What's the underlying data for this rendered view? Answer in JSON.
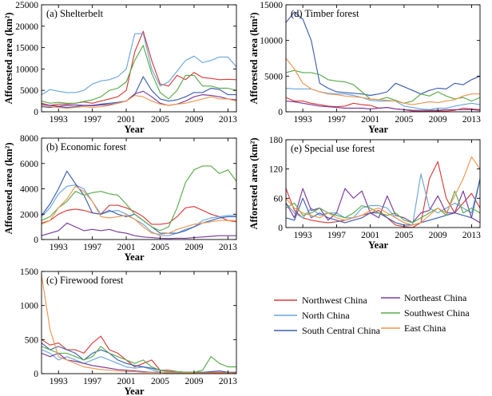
{
  "chart_data": [
    {
      "type": "line",
      "title": "(a) Shelterbelt",
      "xlabel": "Year",
      "ylabel": "Afforested area (km²)",
      "ylim": [
        0,
        25000
      ],
      "yticks": [
        0,
        5000,
        10000,
        15000,
        20000,
        25000
      ],
      "xlim": [
        1991,
        2014
      ],
      "xticks": [
        1993,
        1997,
        2001,
        2005,
        2009,
        2013
      ],
      "x": [
        1991,
        1992,
        1993,
        1994,
        1995,
        1996,
        1997,
        1998,
        1999,
        2000,
        2001,
        2002,
        2003,
        2004,
        2005,
        2006,
        2007,
        2008,
        2009,
        2010,
        2011,
        2012,
        2013,
        2014
      ],
      "series": [
        {
          "name": "Northwest China",
          "values": [
            2000,
            1500,
            1800,
            1800,
            2000,
            2300,
            2000,
            2500,
            3000,
            3500,
            5000,
            14000,
            18800,
            12000,
            6500,
            6000,
            8500,
            7500,
            9200,
            8000,
            7800,
            7500,
            7600,
            7500
          ]
        },
        {
          "name": "North China",
          "values": [
            4000,
            5200,
            4800,
            4500,
            4500,
            5000,
            6500,
            7200,
            7500,
            8200,
            10000,
            18200,
            18300,
            10000,
            6000,
            7000,
            9500,
            12000,
            13000,
            11500,
            12000,
            12800,
            12800,
            10500
          ]
        },
        {
          "name": "South Central China",
          "values": [
            1200,
            1000,
            1200,
            1000,
            1200,
            1500,
            1500,
            1800,
            2000,
            2200,
            2500,
            4000,
            8200,
            5000,
            3000,
            2500,
            2800,
            3500,
            4500,
            4500,
            5500,
            5200,
            4000,
            4000
          ]
        },
        {
          "name": "Northeast China",
          "values": [
            1800,
            1500,
            1300,
            1500,
            1600,
            1500,
            1400,
            1600,
            1700,
            2000,
            2500,
            4200,
            4800,
            3500,
            2000,
            1500,
            1800,
            2500,
            3500,
            4000,
            3800,
            3500,
            3000,
            2800
          ]
        },
        {
          "name": "Southwest China",
          "values": [
            2500,
            2000,
            2200,
            2000,
            2000,
            2400,
            2800,
            3500,
            5000,
            5500,
            7000,
            12000,
            15500,
            9000,
            4500,
            3000,
            5000,
            8500,
            8500,
            6000,
            6000,
            5500,
            5500,
            5000
          ]
        },
        {
          "name": "East China",
          "values": [
            1500,
            1200,
            1000,
            800,
            1000,
            1200,
            1000,
            1200,
            1500,
            2000,
            2500,
            3800,
            3500,
            2500,
            1800,
            1500,
            1800,
            2000,
            2500,
            3000,
            3500,
            3000,
            3000,
            2500
          ]
        }
      ]
    },
    {
      "type": "line",
      "title": "(b) Economic forest",
      "xlabel": "Year",
      "ylabel": "Afforested area (km²)",
      "ylim": [
        0,
        8000
      ],
      "yticks": [
        0,
        2000,
        4000,
        6000,
        8000
      ],
      "xlim": [
        1991,
        2014
      ],
      "xticks": [
        1993,
        1997,
        2001,
        2005,
        2009,
        2013
      ],
      "x": [
        1991,
        1992,
        1993,
        1994,
        1995,
        1996,
        1997,
        1998,
        1999,
        2000,
        2001,
        2002,
        2003,
        2004,
        2005,
        2006,
        2007,
        2008,
        2009,
        2010,
        2011,
        2012,
        2013,
        2014
      ],
      "series": [
        {
          "name": "Northwest China",
          "values": [
            1300,
            1500,
            2000,
            2300,
            2400,
            2300,
            2100,
            2000,
            2700,
            2700,
            2500,
            2200,
            1800,
            1200,
            1200,
            1300,
            1800,
            2500,
            2600,
            2300,
            2000,
            1800,
            1500,
            1400
          ]
        },
        {
          "name": "North China",
          "values": [
            1800,
            2500,
            3600,
            4200,
            4300,
            4000,
            3000,
            2000,
            2200,
            2300,
            2000,
            1600,
            1200,
            600,
            300,
            300,
            500,
            800,
            1000,
            1500,
            1700,
            1800,
            1900,
            1900
          ]
        },
        {
          "name": "South Central China",
          "values": [
            1900,
            2800,
            4000,
            5400,
            4400,
            3500,
            2100,
            2000,
            2300,
            2000,
            1800,
            2000,
            1500,
            1000,
            500,
            500,
            500,
            700,
            1000,
            1300,
            1500,
            1700,
            1800,
            1800
          ]
        },
        {
          "name": "Northeast China",
          "values": [
            300,
            500,
            700,
            1300,
            1000,
            700,
            800,
            700,
            800,
            600,
            500,
            300,
            200,
            150,
            100,
            80,
            100,
            100,
            150,
            200,
            250,
            300,
            300,
            300
          ]
        },
        {
          "name": "Southwest China",
          "values": [
            1500,
            1800,
            2500,
            3000,
            3800,
            3500,
            3700,
            3800,
            3600,
            3500,
            2800,
            2000,
            1500,
            1000,
            700,
            1000,
            2500,
            4500,
            5500,
            5800,
            5800,
            5200,
            5500,
            4600
          ]
        },
        {
          "name": "East China",
          "values": [
            1200,
            1500,
            2500,
            3200,
            4200,
            3800,
            3000,
            1800,
            1700,
            1800,
            1900,
            1600,
            1000,
            500,
            400,
            500,
            800,
            1000,
            1200,
            1300,
            1400,
            1500,
            1500,
            1500
          ]
        }
      ]
    },
    {
      "type": "line",
      "title": "(c) Firewood forest",
      "xlabel": "Year",
      "ylabel": "",
      "ylim": [
        0,
        1500
      ],
      "yticks": [
        0,
        500,
        1000,
        1500
      ],
      "xlim": [
        1991,
        2014
      ],
      "xticks": [
        1993,
        1997,
        2001,
        2005,
        2009,
        2013
      ],
      "x": [
        1991,
        1992,
        1993,
        1994,
        1995,
        1996,
        1997,
        1998,
        1999,
        2000,
        2001,
        2002,
        2003,
        2004,
        2005,
        2006,
        2007,
        2008,
        2009,
        2010,
        2011,
        2012,
        2013,
        2014
      ],
      "series": [
        {
          "name": "Northwest China",
          "values": [
            500,
            420,
            450,
            350,
            350,
            300,
            450,
            550,
            350,
            300,
            200,
            100,
            150,
            200,
            50,
            50,
            30,
            20,
            20,
            20,
            20,
            20,
            20,
            20
          ]
        },
        {
          "name": "North China",
          "values": [
            350,
            300,
            200,
            250,
            200,
            150,
            200,
            250,
            200,
            150,
            100,
            80,
            100,
            60,
            20,
            20,
            20,
            20,
            20,
            10,
            10,
            10,
            10,
            10
          ]
        },
        {
          "name": "South Central China",
          "values": [
            450,
            350,
            400,
            350,
            300,
            200,
            300,
            350,
            300,
            200,
            150,
            120,
            100,
            80,
            50,
            30,
            30,
            20,
            20,
            20,
            30,
            40,
            20,
            20
          ]
        },
        {
          "name": "Northeast China",
          "values": [
            300,
            250,
            300,
            200,
            180,
            150,
            120,
            100,
            80,
            60,
            50,
            40,
            30,
            20,
            20,
            10,
            10,
            10,
            10,
            10,
            10,
            10,
            10,
            10
          ]
        },
        {
          "name": "Southwest China",
          "values": [
            400,
            350,
            300,
            300,
            250,
            200,
            250,
            400,
            300,
            250,
            200,
            150,
            200,
            100,
            50,
            30,
            30,
            20,
            20,
            50,
            250,
            150,
            100,
            100
          ]
        },
        {
          "name": "East China",
          "values": [
            1450,
            650,
            250,
            200,
            150,
            100,
            80,
            60,
            50,
            40,
            30,
            30,
            20,
            20,
            20,
            10,
            10,
            10,
            10,
            10,
            10,
            10,
            10,
            10
          ]
        }
      ]
    },
    {
      "type": "line",
      "title": "(d) Timber forest",
      "xlabel": "Year",
      "ylabel": "Afforested area (km²)",
      "ylim": [
        0,
        15000
      ],
      "yticks": [
        0,
        5000,
        10000,
        15000
      ],
      "xlim": [
        1991,
        2014
      ],
      "xticks": [
        1993,
        1997,
        2001,
        2005,
        2009,
        2013
      ],
      "x": [
        1991,
        1992,
        1993,
        1994,
        1995,
        1996,
        1997,
        1998,
        1999,
        2000,
        2001,
        2002,
        2003,
        2004,
        2005,
        2006,
        2007,
        2008,
        2009,
        2010,
        2011,
        2012,
        2013,
        2014
      ],
      "series": [
        {
          "name": "Northwest China",
          "values": [
            2000,
            1500,
            1500,
            1200,
            1000,
            800,
            700,
            800,
            1200,
            1000,
            900,
            500,
            600,
            400,
            300,
            100,
            50,
            80,
            100,
            100,
            200,
            500,
            400,
            300
          ]
        },
        {
          "name": "North China",
          "values": [
            3300,
            3200,
            3200,
            3200,
            2800,
            2600,
            2500,
            2500,
            2300,
            2000,
            1600,
            1500,
            1500,
            1500,
            800,
            600,
            400,
            300,
            500,
            500,
            800,
            1000,
            1200,
            1000
          ]
        },
        {
          "name": "South Central China",
          "values": [
            12500,
            14000,
            13000,
            10000,
            4000,
            3300,
            2800,
            2700,
            2600,
            2500,
            2300,
            2500,
            2800,
            4000,
            3500,
            3000,
            2500,
            3000,
            3300,
            3200,
            4000,
            3800,
            4500,
            5000
          ]
        },
        {
          "name": "Northeast China",
          "values": [
            1500,
            1400,
            1200,
            1000,
            800,
            700,
            600,
            500,
            500,
            500,
            400,
            500,
            600,
            400,
            300,
            200,
            200,
            200,
            200,
            300,
            300,
            300,
            300,
            200
          ]
        },
        {
          "name": "Southwest China",
          "values": [
            5500,
            5800,
            5500,
            5500,
            5200,
            4500,
            4300,
            4200,
            3800,
            2800,
            1800,
            1700,
            2000,
            1600,
            1200,
            1500,
            2500,
            2200,
            2800,
            2200,
            1800,
            2000,
            1500,
            2000
          ]
        },
        {
          "name": "East China",
          "values": [
            7500,
            6000,
            4000,
            3200,
            2800,
            2500,
            2400,
            2200,
            2100,
            2000,
            1800,
            1700,
            1600,
            1500,
            1200,
            1000,
            1200,
            1400,
            1300,
            1500,
            1700,
            2200,
            2500,
            2500
          ]
        }
      ]
    },
    {
      "type": "line",
      "title": "(e) Special use forest",
      "xlabel": "Year",
      "ylabel": "Afforested area (km²)",
      "ylim": [
        0,
        180
      ],
      "yticks": [
        0,
        60,
        120,
        180
      ],
      "xlim": [
        1991,
        2014
      ],
      "xticks": [
        1993,
        1997,
        2001,
        2005,
        2009,
        2013
      ],
      "x": [
        1991,
        1992,
        1993,
        1994,
        1995,
        1996,
        1997,
        1998,
        1999,
        2000,
        2001,
        2002,
        2003,
        2004,
        2005,
        2006,
        2007,
        2008,
        2009,
        2010,
        2011,
        2012,
        2013,
        2014
      ],
      "series": [
        {
          "name": "Northwest China",
          "values": [
            80,
            35,
            20,
            15,
            12,
            10,
            12,
            15,
            20,
            25,
            30,
            35,
            20,
            5,
            2,
            0,
            10,
            100,
            135,
            60,
            30,
            50,
            70,
            40
          ]
        },
        {
          "name": "North China",
          "values": [
            50,
            30,
            20,
            40,
            25,
            30,
            30,
            20,
            20,
            40,
            45,
            45,
            40,
            20,
            10,
            5,
            110,
            40,
            30,
            40,
            50,
            40,
            30,
            100
          ]
        },
        {
          "name": "South Central China",
          "values": [
            20,
            15,
            60,
            20,
            30,
            20,
            15,
            10,
            15,
            20,
            30,
            30,
            20,
            10,
            5,
            5,
            10,
            15,
            20,
            25,
            30,
            25,
            20,
            100
          ]
        },
        {
          "name": "Northeast China",
          "values": [
            50,
            20,
            80,
            35,
            40,
            15,
            30,
            80,
            60,
            75,
            30,
            20,
            65,
            25,
            20,
            10,
            30,
            35,
            65,
            30,
            30,
            75,
            20,
            10
          ]
        },
        {
          "name": "Southwest China",
          "values": [
            40,
            50,
            25,
            30,
            40,
            30,
            25,
            20,
            30,
            45,
            40,
            30,
            25,
            30,
            15,
            10,
            20,
            30,
            40,
            25,
            75,
            30,
            40,
            30
          ]
        },
        {
          "name": "East China",
          "values": [
            60,
            40,
            30,
            25,
            20,
            30,
            20,
            15,
            20,
            25,
            35,
            40,
            30,
            20,
            10,
            5,
            10,
            25,
            40,
            30,
            65,
            100,
            145,
            120
          ]
        }
      ]
    }
  ],
  "legend": [
    {
      "name": "Northwest China",
      "color": "#d93b3b"
    },
    {
      "name": "Northeast China",
      "color": "#7a3a9a"
    },
    {
      "name": "North China",
      "color": "#6aa6db"
    },
    {
      "name": "Southwest China",
      "color": "#5aab4a"
    },
    {
      "name": "South Central China",
      "color": "#3b5fb0"
    },
    {
      "name": "East China",
      "color": "#ef9651"
    }
  ]
}
